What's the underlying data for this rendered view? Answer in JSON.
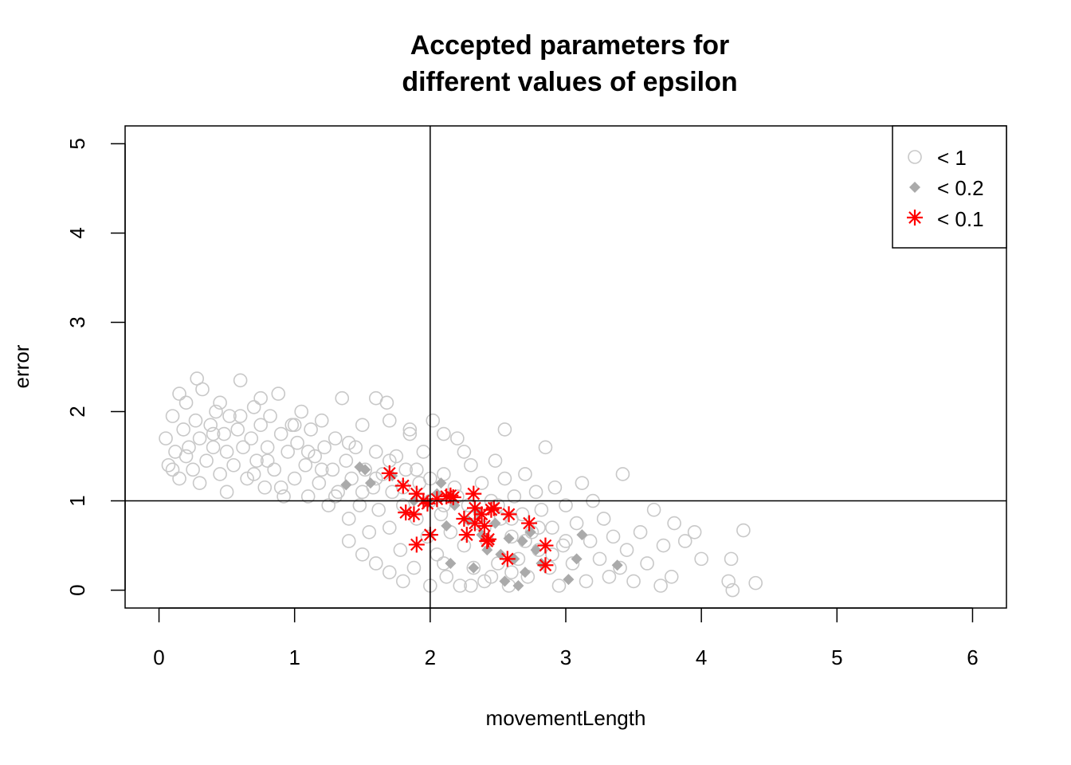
{
  "chart_data": {
    "type": "scatter",
    "title": [
      "Accepted parameters for",
      "different values of epsilon"
    ],
    "xlabel": "movementLength",
    "ylabel": "error",
    "xlim": [
      -0.25,
      6.25
    ],
    "ylim": [
      -0.2,
      5.2
    ],
    "x_ticks": [
      0,
      1,
      2,
      3,
      4,
      5,
      6
    ],
    "y_ticks": [
      0,
      1,
      2,
      3,
      4,
      5
    ],
    "reference_lines": {
      "vertical_x": 2,
      "horizontal_y": 1
    },
    "legend": {
      "position": "top-right",
      "entries": [
        {
          "label": "< 1",
          "symbol": "open-circle",
          "color": "#c8c8c8"
        },
        {
          "label": "< 0.2",
          "symbol": "filled-diamond",
          "color": "#aaaaaa"
        },
        {
          "label": "< 0.1",
          "symbol": "asterisk",
          "color": "#ff0000"
        }
      ]
    },
    "series": [
      {
        "name": "< 1",
        "symbol": "open-circle",
        "color": "#c8c8c8",
        "points_note": "dense cloud of accepted samples",
        "points": [
          [
            0.05,
            1.7
          ],
          [
            0.07,
            1.4
          ],
          [
            0.1,
            1.95
          ],
          [
            0.12,
            1.55
          ],
          [
            0.15,
            1.25
          ],
          [
            0.18,
            1.8
          ],
          [
            0.2,
            2.1
          ],
          [
            0.22,
            1.6
          ],
          [
            0.25,
            1.35
          ],
          [
            0.27,
            1.9
          ],
          [
            0.3,
            1.7
          ],
          [
            0.32,
            2.25
          ],
          [
            0.35,
            1.45
          ],
          [
            0.38,
            1.85
          ],
          [
            0.4,
            1.6
          ],
          [
            0.42,
            2.0
          ],
          [
            0.45,
            1.3
          ],
          [
            0.48,
            1.75
          ],
          [
            0.5,
            1.55
          ],
          [
            0.52,
            1.95
          ],
          [
            0.55,
            1.4
          ],
          [
            0.58,
            1.8
          ],
          [
            0.6,
            2.35
          ],
          [
            0.62,
            1.6
          ],
          [
            0.65,
            1.25
          ],
          [
            0.68,
            1.7
          ],
          [
            0.7,
            2.05
          ],
          [
            0.72,
            1.45
          ],
          [
            0.75,
            1.85
          ],
          [
            0.78,
            1.15
          ],
          [
            0.8,
            1.6
          ],
          [
            0.82,
            1.95
          ],
          [
            0.85,
            1.35
          ],
          [
            0.88,
            2.2
          ],
          [
            0.9,
            1.75
          ],
          [
            0.92,
            1.05
          ],
          [
            0.95,
            1.55
          ],
          [
            0.98,
            1.85
          ],
          [
            1.0,
            1.25
          ],
          [
            1.02,
            1.65
          ],
          [
            1.05,
            2.0
          ],
          [
            1.08,
            1.4
          ],
          [
            1.1,
            1.05
          ],
          [
            1.12,
            1.8
          ],
          [
            1.15,
            1.5
          ],
          [
            1.18,
            1.2
          ],
          [
            1.2,
            1.9
          ],
          [
            1.22,
            1.6
          ],
          [
            1.25,
            0.95
          ],
          [
            1.28,
            1.35
          ],
          [
            1.3,
            1.7
          ],
          [
            1.32,
            1.1
          ],
          [
            1.35,
            2.15
          ],
          [
            1.38,
            1.45
          ],
          [
            1.4,
            0.8
          ],
          [
            1.42,
            1.25
          ],
          [
            1.45,
            1.6
          ],
          [
            1.48,
            0.95
          ],
          [
            1.5,
            1.85
          ],
          [
            1.52,
            1.35
          ],
          [
            1.55,
            0.65
          ],
          [
            1.58,
            1.15
          ],
          [
            1.6,
            1.55
          ],
          [
            1.62,
            0.9
          ],
          [
            1.65,
            1.3
          ],
          [
            1.68,
            2.1
          ],
          [
            1.7,
            0.7
          ],
          [
            1.72,
            1.1
          ],
          [
            1.75,
            1.5
          ],
          [
            1.78,
            0.45
          ],
          [
            1.8,
            0.95
          ],
          [
            1.82,
            1.35
          ],
          [
            1.85,
            1.75
          ],
          [
            1.88,
            0.25
          ],
          [
            1.9,
            0.8
          ],
          [
            1.92,
            1.2
          ],
          [
            1.95,
            1.55
          ],
          [
            1.98,
            0.6
          ],
          [
            2.0,
            1.0
          ],
          [
            2.02,
            1.9
          ],
          [
            2.05,
            0.4
          ],
          [
            2.08,
            0.85
          ],
          [
            2.1,
            1.3
          ],
          [
            2.12,
            0.15
          ],
          [
            2.15,
            0.65
          ],
          [
            2.18,
            1.15
          ],
          [
            2.2,
            1.7
          ],
          [
            2.22,
            0.05
          ],
          [
            2.25,
            0.5
          ],
          [
            2.28,
            0.95
          ],
          [
            2.3,
            1.4
          ],
          [
            2.32,
            0.25
          ],
          [
            2.35,
            0.75
          ],
          [
            2.38,
            1.2
          ],
          [
            2.4,
            0.1
          ],
          [
            2.42,
            0.55
          ],
          [
            2.45,
            1.0
          ],
          [
            2.48,
            1.45
          ],
          [
            2.5,
            0.3
          ],
          [
            2.52,
            0.8
          ],
          [
            2.55,
            1.25
          ],
          [
            2.58,
            0.05
          ],
          [
            2.6,
            0.6
          ],
          [
            2.62,
            1.05
          ],
          [
            2.65,
            0.35
          ],
          [
            2.68,
            0.85
          ],
          [
            2.7,
            1.3
          ],
          [
            2.72,
            0.15
          ],
          [
            2.75,
            0.65
          ],
          [
            2.78,
            1.1
          ],
          [
            2.8,
            0.45
          ],
          [
            2.82,
            0.9
          ],
          [
            2.85,
            1.6
          ],
          [
            2.88,
            0.25
          ],
          [
            2.9,
            0.7
          ],
          [
            2.92,
            1.15
          ],
          [
            2.95,
            0.05
          ],
          [
            2.98,
            0.5
          ],
          [
            3.0,
            0.95
          ],
          [
            3.05,
            0.3
          ],
          [
            3.08,
            0.75
          ],
          [
            3.12,
            1.2
          ],
          [
            3.15,
            0.1
          ],
          [
            3.18,
            0.55
          ],
          [
            3.2,
            1.0
          ],
          [
            3.25,
            0.35
          ],
          [
            3.28,
            0.8
          ],
          [
            3.32,
            0.15
          ],
          [
            3.35,
            0.6
          ],
          [
            3.4,
            0.25
          ],
          [
            3.42,
            1.3
          ],
          [
            3.45,
            0.45
          ],
          [
            3.5,
            0.1
          ],
          [
            3.55,
            0.65
          ],
          [
            3.6,
            0.3
          ],
          [
            3.65,
            0.9
          ],
          [
            3.7,
            0.05
          ],
          [
            3.72,
            0.5
          ],
          [
            3.78,
            0.15
          ],
          [
            3.8,
            0.75
          ],
          [
            3.88,
            0.55
          ],
          [
            3.95,
            0.65
          ],
          [
            4.0,
            0.35
          ],
          [
            4.2,
            0.1
          ],
          [
            4.22,
            0.35
          ],
          [
            4.23,
            0.0
          ],
          [
            4.31,
            0.67
          ],
          [
            4.4,
            0.08
          ],
          [
            0.1,
            1.35
          ],
          [
            0.2,
            1.5
          ],
          [
            0.3,
            1.2
          ],
          [
            0.4,
            1.75
          ],
          [
            0.5,
            1.1
          ],
          [
            0.6,
            1.95
          ],
          [
            0.7,
            1.3
          ],
          [
            0.8,
            1.45
          ],
          [
            0.9,
            1.15
          ],
          [
            1.0,
            1.85
          ],
          [
            1.1,
            1.55
          ],
          [
            1.2,
            1.35
          ],
          [
            1.3,
            1.05
          ],
          [
            1.4,
            1.65
          ],
          [
            1.5,
            1.1
          ],
          [
            1.6,
            1.25
          ],
          [
            1.7,
            1.45
          ],
          [
            1.8,
            1.15
          ],
          [
            1.9,
            1.35
          ],
          [
            2.0,
            1.25
          ],
          [
            2.1,
            0.95
          ],
          [
            2.2,
            1.05
          ],
          [
            2.3,
            0.85
          ],
          [
            2.4,
            0.7
          ],
          [
            2.5,
            0.95
          ],
          [
            2.6,
            0.8
          ],
          [
            2.7,
            0.55
          ],
          [
            2.8,
            0.7
          ],
          [
            2.9,
            0.4
          ],
          [
            3.0,
            0.55
          ],
          [
            0.15,
            2.2
          ],
          [
            0.28,
            2.37
          ],
          [
            0.45,
            2.1
          ],
          [
            0.75,
            2.15
          ],
          [
            1.6,
            2.15
          ],
          [
            1.7,
            1.9
          ],
          [
            1.85,
            1.8
          ],
          [
            2.1,
            1.75
          ],
          [
            2.25,
            1.55
          ],
          [
            2.55,
            1.8
          ],
          [
            1.4,
            0.55
          ],
          [
            1.5,
            0.4
          ],
          [
            1.6,
            0.3
          ],
          [
            1.7,
            0.2
          ],
          [
            1.8,
            0.1
          ],
          [
            2.0,
            0.05
          ],
          [
            2.1,
            0.3
          ],
          [
            2.3,
            0.05
          ],
          [
            2.45,
            0.15
          ],
          [
            2.6,
            0.2
          ]
        ]
      },
      {
        "name": "< 0.2",
        "symbol": "filled-diamond",
        "color": "#aaaaaa",
        "points": [
          [
            1.38,
            1.18
          ],
          [
            1.48,
            1.38
          ],
          [
            1.52,
            1.35
          ],
          [
            1.56,
            1.2
          ],
          [
            1.72,
            1.28
          ],
          [
            1.88,
            1.0
          ],
          [
            1.98,
            0.98
          ],
          [
            2.05,
            1.08
          ],
          [
            2.08,
            1.2
          ],
          [
            2.12,
            0.72
          ],
          [
            2.15,
            0.3
          ],
          [
            2.18,
            0.95
          ],
          [
            2.28,
            0.78
          ],
          [
            2.32,
            0.25
          ],
          [
            2.35,
            0.88
          ],
          [
            2.38,
            0.62
          ],
          [
            2.42,
            0.45
          ],
          [
            2.48,
            0.75
          ],
          [
            2.52,
            0.4
          ],
          [
            2.55,
            0.1
          ],
          [
            2.58,
            0.58
          ],
          [
            2.62,
            0.35
          ],
          [
            2.65,
            0.05
          ],
          [
            2.68,
            0.55
          ],
          [
            2.7,
            0.2
          ],
          [
            2.74,
            0.65
          ],
          [
            2.78,
            0.45
          ],
          [
            2.82,
            0.3
          ],
          [
            3.02,
            0.12
          ],
          [
            3.08,
            0.35
          ],
          [
            3.12,
            0.62
          ],
          [
            3.38,
            0.28
          ]
        ]
      },
      {
        "name": "< 0.1",
        "symbol": "asterisk",
        "color": "#ff0000",
        "points": [
          [
            1.7,
            1.31
          ],
          [
            1.8,
            1.17
          ],
          [
            1.82,
            0.87
          ],
          [
            1.88,
            0.85
          ],
          [
            1.9,
            1.08
          ],
          [
            1.9,
            0.51
          ],
          [
            1.95,
            1.0
          ],
          [
            1.98,
            0.97
          ],
          [
            2.0,
            0.62
          ],
          [
            2.05,
            1.02
          ],
          [
            2.12,
            1.05
          ],
          [
            2.15,
            1.06
          ],
          [
            2.17,
            1.04
          ],
          [
            2.25,
            0.8
          ],
          [
            2.27,
            0.62
          ],
          [
            2.32,
            1.08
          ],
          [
            2.33,
            0.92
          ],
          [
            2.33,
            0.75
          ],
          [
            2.38,
            0.85
          ],
          [
            2.4,
            0.72
          ],
          [
            2.42,
            0.55
          ],
          [
            2.43,
            0.57
          ],
          [
            2.45,
            0.9
          ],
          [
            2.47,
            0.92
          ],
          [
            2.57,
            0.35
          ],
          [
            2.58,
            0.85
          ],
          [
            2.73,
            0.75
          ],
          [
            2.85,
            0.5
          ],
          [
            2.85,
            0.28
          ]
        ]
      }
    ]
  }
}
